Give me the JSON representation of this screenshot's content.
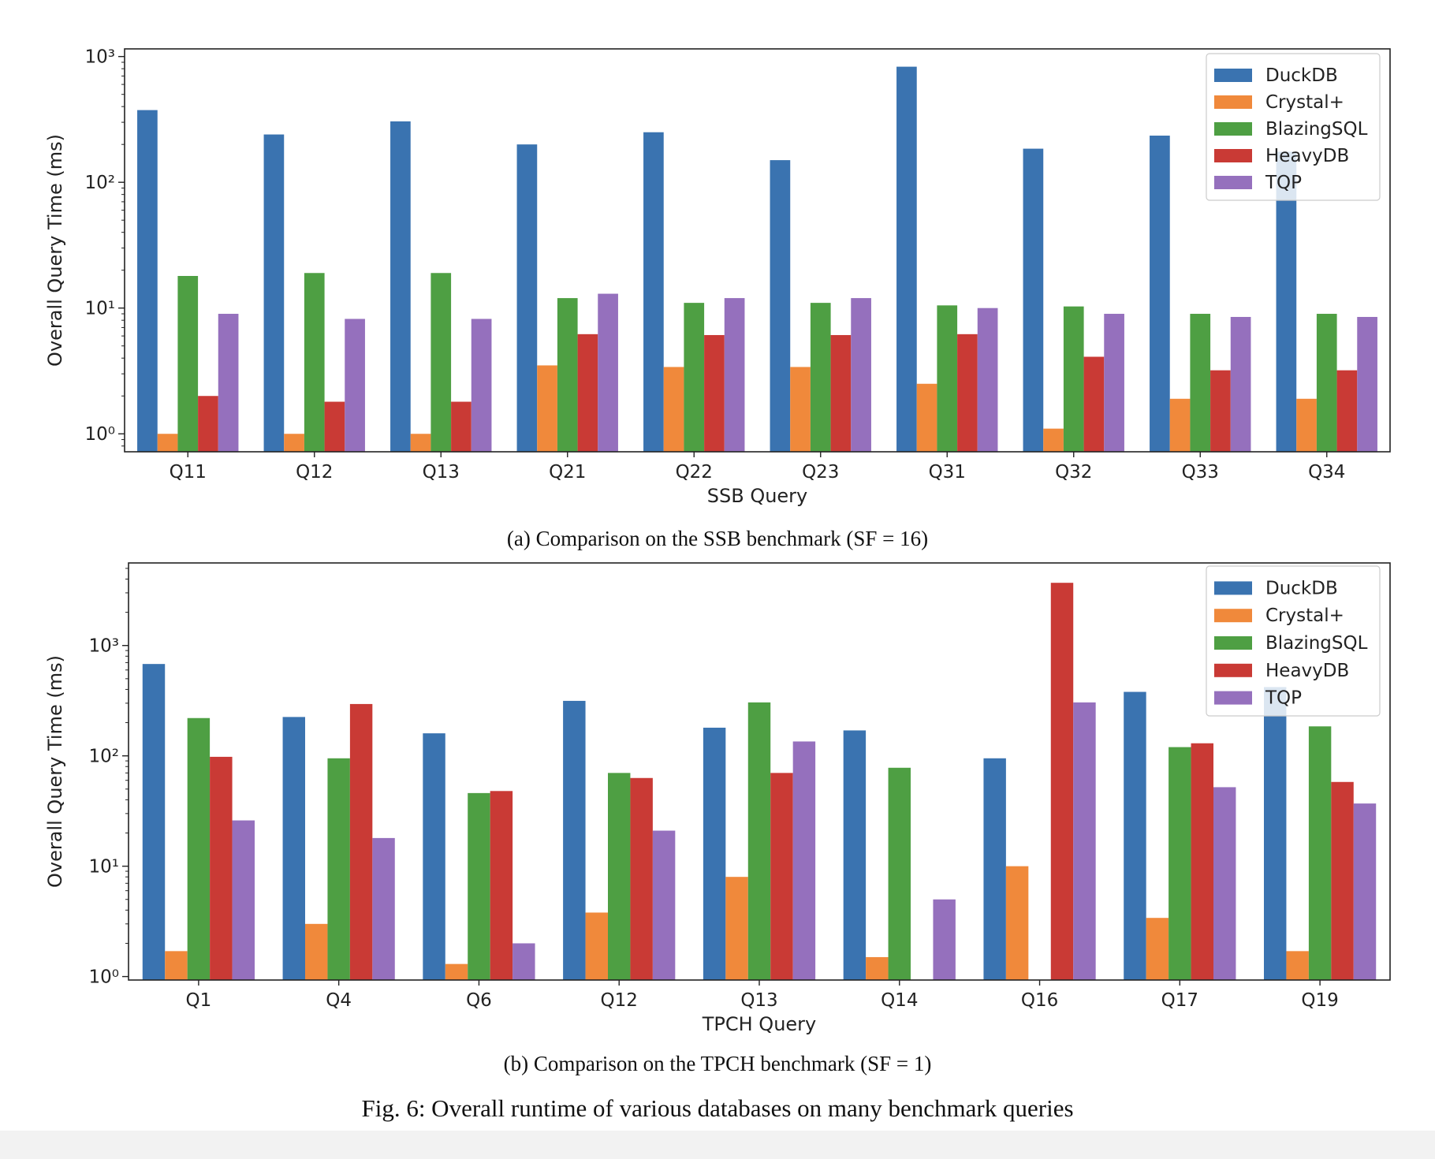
{
  "figure_caption": "Fig. 6: Overall runtime of various databases on many benchmark queries",
  "colors": {
    "DuckDB": "#3a73b0",
    "Crystal+": "#f0893b",
    "BlazingSQL": "#4e9f43",
    "HeavyDB": "#c93a35",
    "TQP": "#9570bd"
  },
  "chart_data": [
    {
      "type": "bar",
      "caption": "(a) Comparison on the SSB benchmark (SF = 16)",
      "xlabel": "SSB Query",
      "ylabel": "Overall Query Time (ms)",
      "yscale": "log",
      "ylim": [
        0.72,
        1150
      ],
      "ytick_labels": [
        "10⁰",
        "10¹",
        "10²",
        "10³"
      ],
      "legend_position": "top-right",
      "grid": false,
      "categories": [
        "Q11",
        "Q12",
        "Q13",
        "Q21",
        "Q22",
        "Q23",
        "Q31",
        "Q32",
        "Q33",
        "Q34"
      ],
      "series": [
        {
          "name": "DuckDB",
          "values": [
            375,
            240,
            305,
            200,
            250,
            150,
            830,
            185,
            235,
            175
          ]
        },
        {
          "name": "Crystal+",
          "values": [
            1.0,
            1.0,
            1.0,
            3.5,
            3.4,
            3.4,
            2.5,
            1.1,
            1.9,
            1.9
          ]
        },
        {
          "name": "BlazingSQL",
          "values": [
            18,
            19,
            19,
            12,
            11,
            11,
            10.5,
            10.3,
            9,
            9
          ]
        },
        {
          "name": "HeavyDB",
          "values": [
            2.0,
            1.8,
            1.8,
            6.2,
            6.1,
            6.1,
            6.2,
            4.1,
            3.2,
            3.2
          ]
        },
        {
          "name": "TQP",
          "values": [
            9,
            8.2,
            8.2,
            13,
            12,
            12,
            10,
            9,
            8.5,
            8.5
          ]
        }
      ]
    },
    {
      "type": "bar",
      "caption": "(b) Comparison on the TPCH benchmark (SF = 1)",
      "xlabel": "TPCH Query",
      "ylabel": "Overall Query Time (ms)",
      "yscale": "log",
      "ylim": [
        0.93,
        5600
      ],
      "ytick_labels": [
        "10⁰",
        "10¹",
        "10²",
        "10³"
      ],
      "legend_position": "top-right",
      "grid": false,
      "categories": [
        "Q1",
        "Q4",
        "Q6",
        "Q12",
        "Q13",
        "Q14",
        "Q16",
        "Q17",
        "Q19"
      ],
      "series": [
        {
          "name": "DuckDB",
          "values": [
            680,
            225,
            160,
            315,
            180,
            170,
            95,
            380,
            420
          ]
        },
        {
          "name": "Crystal+",
          "values": [
            1.7,
            3.0,
            1.3,
            3.8,
            8.0,
            1.5,
            10,
            3.4,
            1.7
          ]
        },
        {
          "name": "BlazingSQL",
          "values": [
            220,
            95,
            46,
            70,
            305,
            78,
            null,
            120,
            185
          ]
        },
        {
          "name": "HeavyDB",
          "values": [
            98,
            295,
            48,
            63,
            70,
            null,
            3700,
            130,
            58
          ]
        },
        {
          "name": "TQP",
          "values": [
            26,
            18,
            2.0,
            21,
            135,
            5.0,
            305,
            52,
            37
          ]
        }
      ]
    }
  ]
}
